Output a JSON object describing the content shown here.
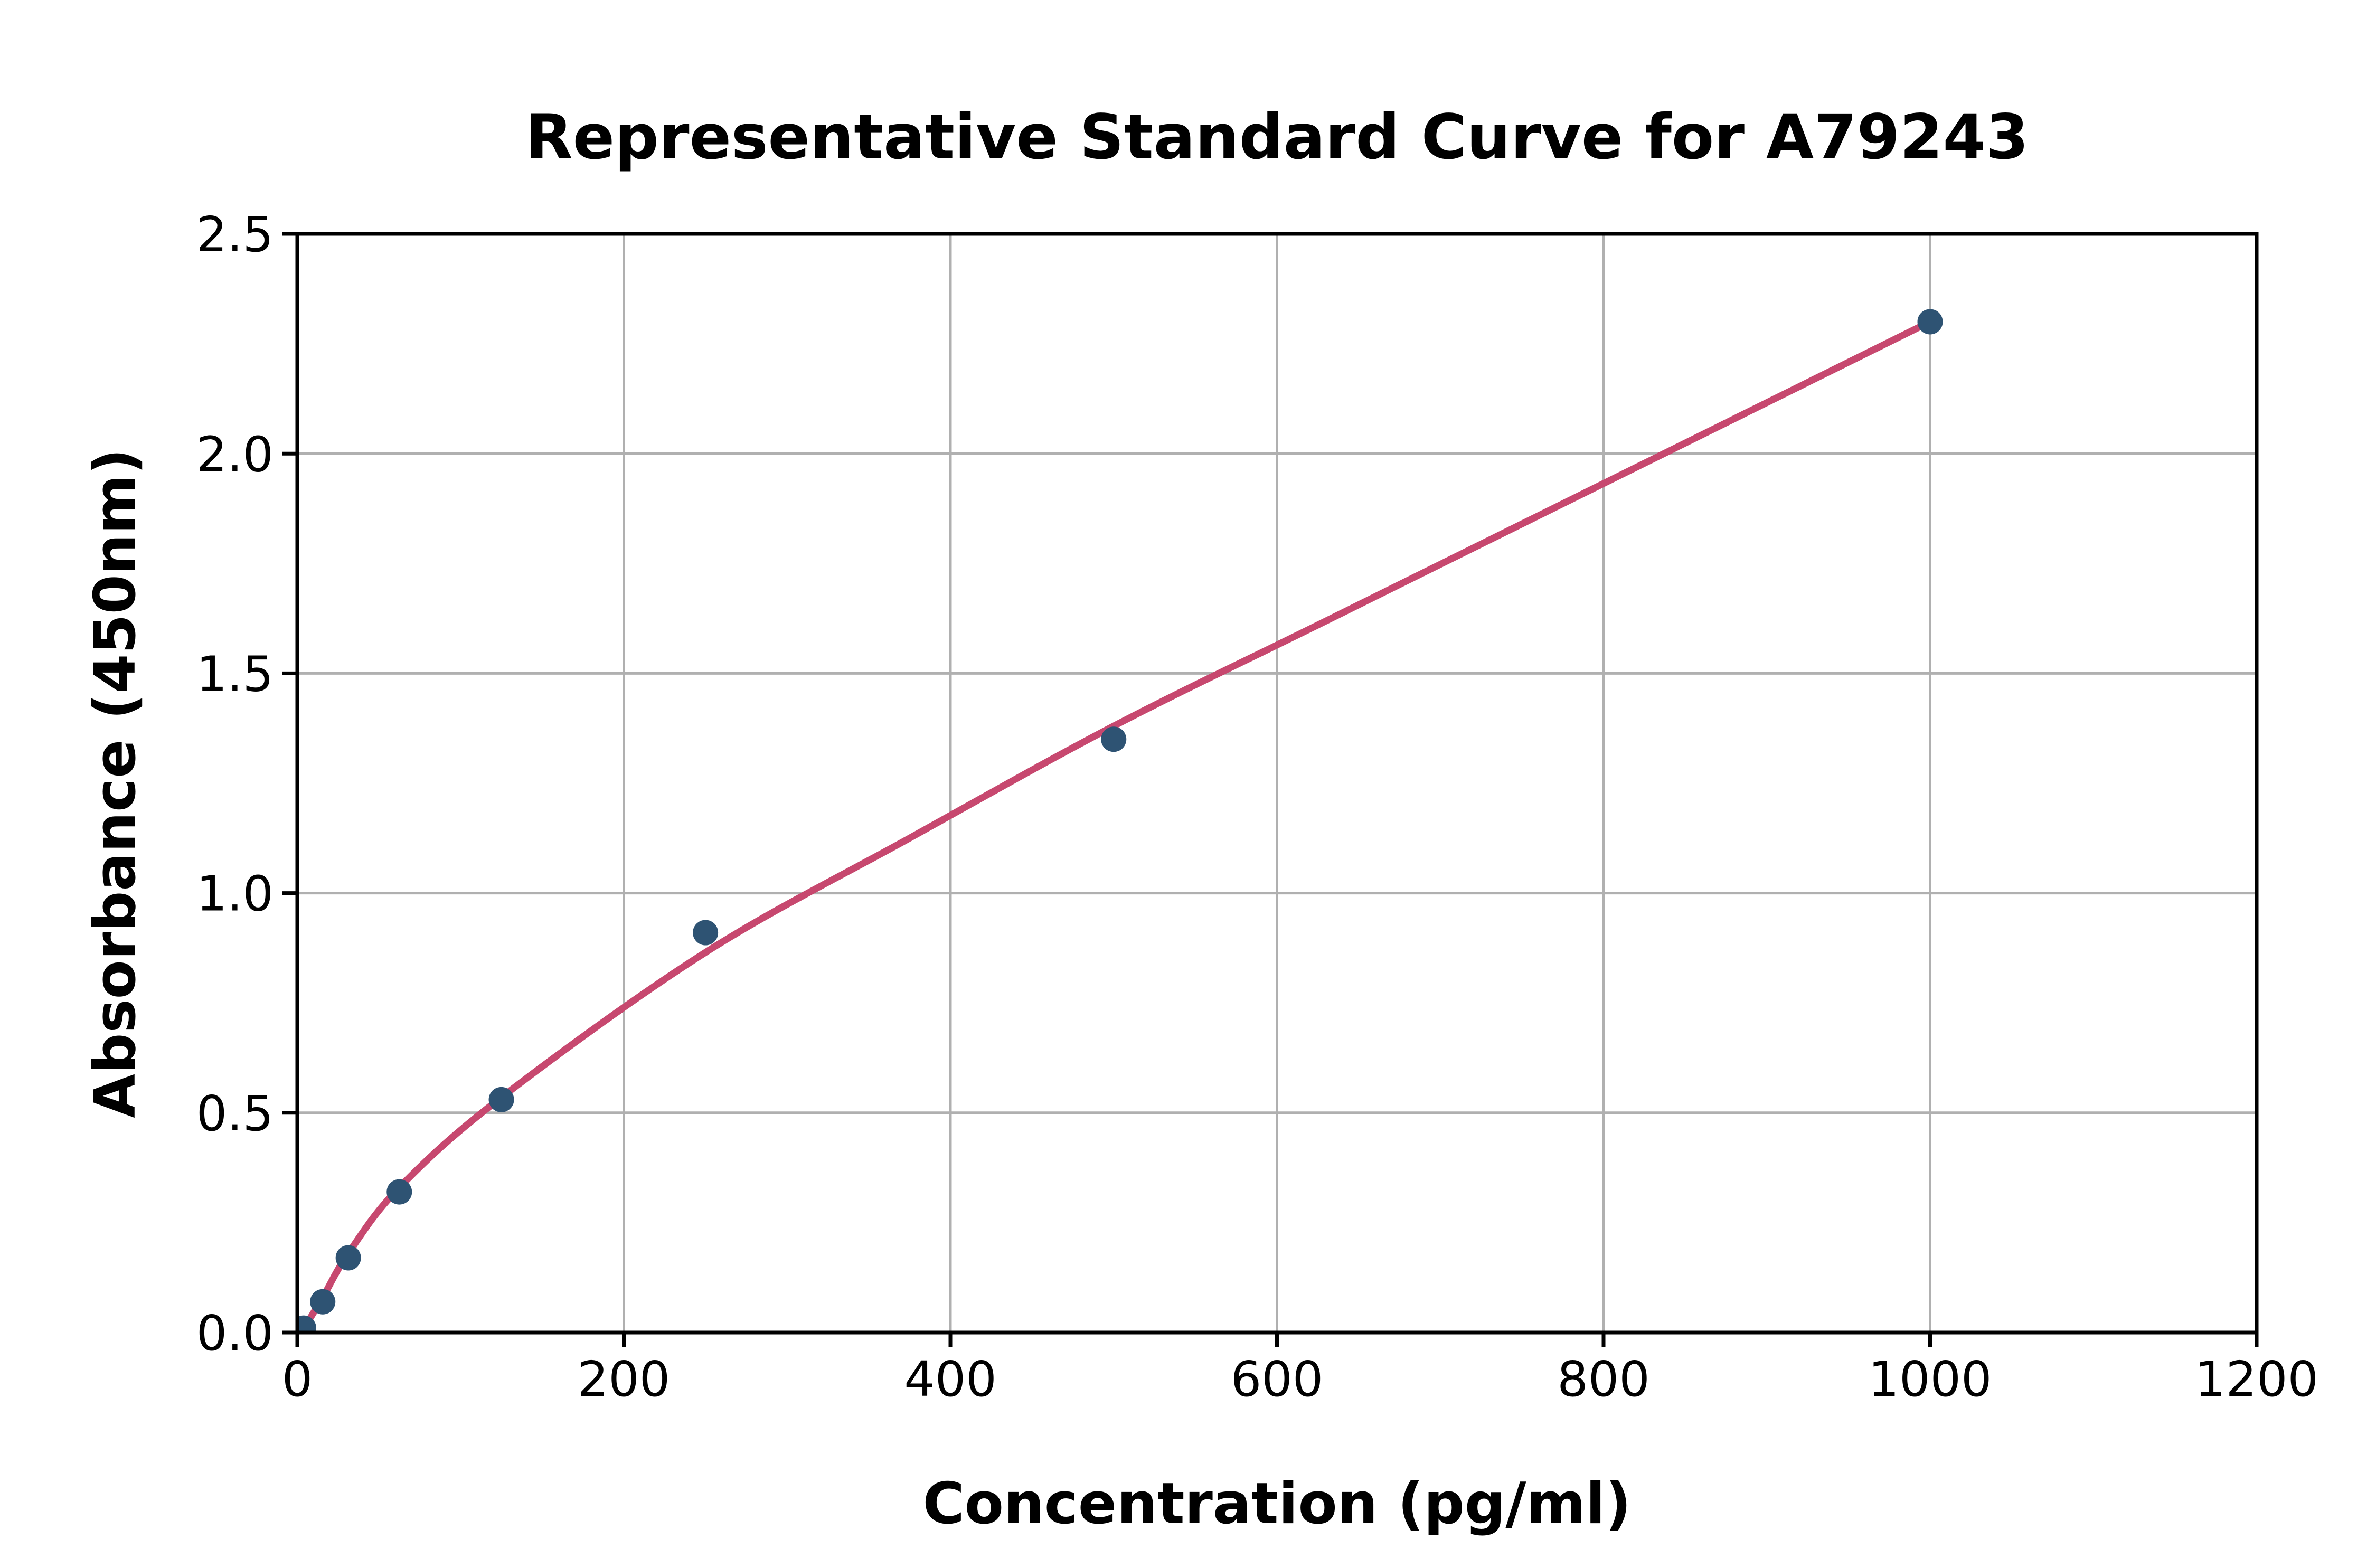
{
  "figure": {
    "background": "#ffffff"
  },
  "chart_data": {
    "type": "scatter",
    "title": "Representative Standard Curve for A79243",
    "xlabel": "Concentration (pg/ml)",
    "ylabel": "Absorbance (450nm)",
    "xlim": [
      0,
      1200
    ],
    "ylim": [
      0,
      2.5
    ],
    "xticks": [
      0,
      200,
      400,
      600,
      800,
      1000,
      1200
    ],
    "yticks": [
      0.0,
      0.5,
      1.0,
      1.5,
      2.0,
      2.5
    ],
    "grid": true,
    "legend": "none",
    "series": [
      {
        "name": "standard-points",
        "type": "scatter",
        "x": [
          3.9,
          15.6,
          31.25,
          62.5,
          125,
          250,
          500,
          1000
        ],
        "y": [
          0.01,
          0.07,
          0.17,
          0.32,
          0.53,
          0.91,
          1.35,
          2.3
        ],
        "color": "#2e5373"
      },
      {
        "name": "fitted-curve",
        "type": "line",
        "x": [
          2.5,
          15.6,
          31.25,
          62.5,
          125,
          250,
          375,
          500,
          625,
          750,
          875,
          1000
        ],
        "y": [
          0.0,
          0.08,
          0.18,
          0.33,
          0.535,
          0.865,
          1.125,
          1.38,
          1.61,
          1.84,
          2.07,
          2.3
        ],
        "color": "#c7486f"
      }
    ],
    "colors": {
      "axis": "#000000",
      "grid": "#b0b0b0",
      "tick_text": "#000000",
      "background": "#ffffff"
    }
  }
}
